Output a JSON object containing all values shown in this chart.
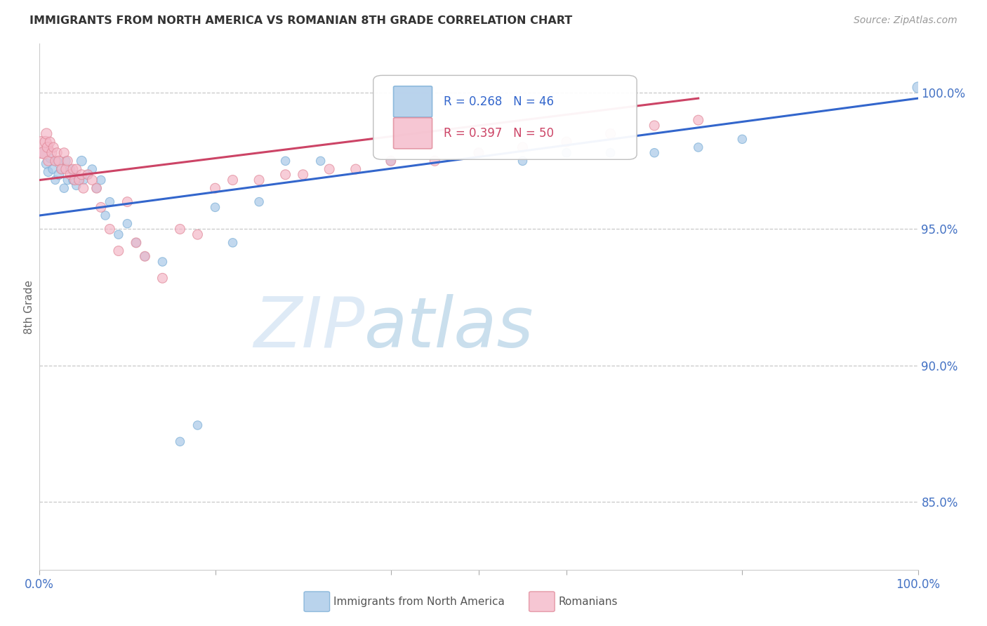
{
  "title": "IMMIGRANTS FROM NORTH AMERICA VS ROMANIAN 8TH GRADE CORRELATION CHART",
  "source": "Source: ZipAtlas.com",
  "ylabel": "8th Grade",
  "ylabel_right_ticks": [
    "100.0%",
    "95.0%",
    "90.0%",
    "85.0%"
  ],
  "ylabel_right_vals": [
    1.0,
    0.95,
    0.9,
    0.85
  ],
  "xlim": [
    0.0,
    1.0
  ],
  "ylim": [
    0.825,
    1.018
  ],
  "legend1_label": "Immigrants from North America",
  "legend2_label": "Romanians",
  "R_blue": 0.268,
  "N_blue": 46,
  "R_pink": 0.397,
  "N_pink": 50,
  "blue_color": "#a8c8e8",
  "pink_color": "#f4b8c8",
  "blue_edge_color": "#7aaed6",
  "pink_edge_color": "#e08898",
  "blue_line_color": "#3366cc",
  "pink_line_color": "#cc4466",
  "blue_points_x": [
    0.005,
    0.008,
    0.01,
    0.012,
    0.015,
    0.018,
    0.02,
    0.022,
    0.025,
    0.028,
    0.03,
    0.032,
    0.035,
    0.038,
    0.04,
    0.042,
    0.045,
    0.048,
    0.05,
    0.055,
    0.06,
    0.065,
    0.07,
    0.075,
    0.08,
    0.09,
    0.1,
    0.11,
    0.12,
    0.14,
    0.16,
    0.18,
    0.2,
    0.22,
    0.25,
    0.28,
    0.32,
    0.4,
    0.5,
    0.55,
    0.6,
    0.65,
    0.7,
    0.75,
    0.8,
    1.0
  ],
  "blue_points_y": [
    0.978,
    0.974,
    0.971,
    0.976,
    0.972,
    0.968,
    0.975,
    0.97,
    0.972,
    0.965,
    0.975,
    0.968,
    0.972,
    0.968,
    0.97,
    0.966,
    0.968,
    0.975,
    0.968,
    0.97,
    0.972,
    0.965,
    0.968,
    0.955,
    0.96,
    0.948,
    0.952,
    0.945,
    0.94,
    0.938,
    0.872,
    0.878,
    0.958,
    0.945,
    0.96,
    0.975,
    0.975,
    0.975,
    0.978,
    0.975,
    0.978,
    0.978,
    0.978,
    0.98,
    0.983,
    1.002
  ],
  "blue_points_size": [
    120,
    100,
    90,
    80,
    80,
    75,
    85,
    100,
    80,
    80,
    85,
    80,
    80,
    80,
    90,
    80,
    85,
    100,
    80,
    80,
    80,
    80,
    80,
    80,
    80,
    80,
    80,
    80,
    80,
    80,
    80,
    80,
    80,
    80,
    80,
    80,
    80,
    80,
    80,
    80,
    80,
    80,
    80,
    80,
    80,
    120
  ],
  "pink_points_x": [
    0.003,
    0.005,
    0.007,
    0.008,
    0.009,
    0.01,
    0.012,
    0.014,
    0.016,
    0.018,
    0.02,
    0.022,
    0.025,
    0.028,
    0.03,
    0.032,
    0.035,
    0.038,
    0.04,
    0.042,
    0.045,
    0.048,
    0.05,
    0.055,
    0.06,
    0.065,
    0.07,
    0.08,
    0.09,
    0.1,
    0.11,
    0.12,
    0.14,
    0.16,
    0.18,
    0.2,
    0.22,
    0.25,
    0.28,
    0.3,
    0.33,
    0.36,
    0.4,
    0.45,
    0.5,
    0.55,
    0.6,
    0.65,
    0.7,
    0.75
  ],
  "pink_points_y": [
    0.98,
    0.978,
    0.982,
    0.985,
    0.98,
    0.975,
    0.982,
    0.978,
    0.98,
    0.975,
    0.978,
    0.975,
    0.972,
    0.978,
    0.972,
    0.975,
    0.97,
    0.972,
    0.968,
    0.972,
    0.968,
    0.97,
    0.965,
    0.97,
    0.968,
    0.965,
    0.958,
    0.95,
    0.942,
    0.96,
    0.945,
    0.94,
    0.932,
    0.95,
    0.948,
    0.965,
    0.968,
    0.968,
    0.97,
    0.97,
    0.972,
    0.972,
    0.975,
    0.975,
    0.978,
    0.98,
    0.982,
    0.985,
    0.988,
    0.99
  ],
  "pink_points_size": [
    500,
    160,
    130,
    120,
    110,
    100,
    100,
    100,
    100,
    100,
    100,
    100,
    100,
    100,
    100,
    100,
    100,
    100,
    100,
    100,
    100,
    100,
    100,
    100,
    100,
    100,
    100,
    100,
    100,
    100,
    100,
    100,
    100,
    100,
    100,
    100,
    100,
    100,
    100,
    100,
    100,
    100,
    100,
    100,
    100,
    100,
    100,
    100,
    100,
    100
  ],
  "blue_trend_x": [
    0.0,
    1.0
  ],
  "blue_trend_y": [
    0.955,
    0.998
  ],
  "pink_trend_x": [
    0.0,
    0.75
  ],
  "pink_trend_y": [
    0.968,
    0.998
  ],
  "watermark_zip": "ZIP",
  "watermark_atlas": "atlas",
  "background_color": "#ffffff",
  "grid_color": "#c8c8c8"
}
